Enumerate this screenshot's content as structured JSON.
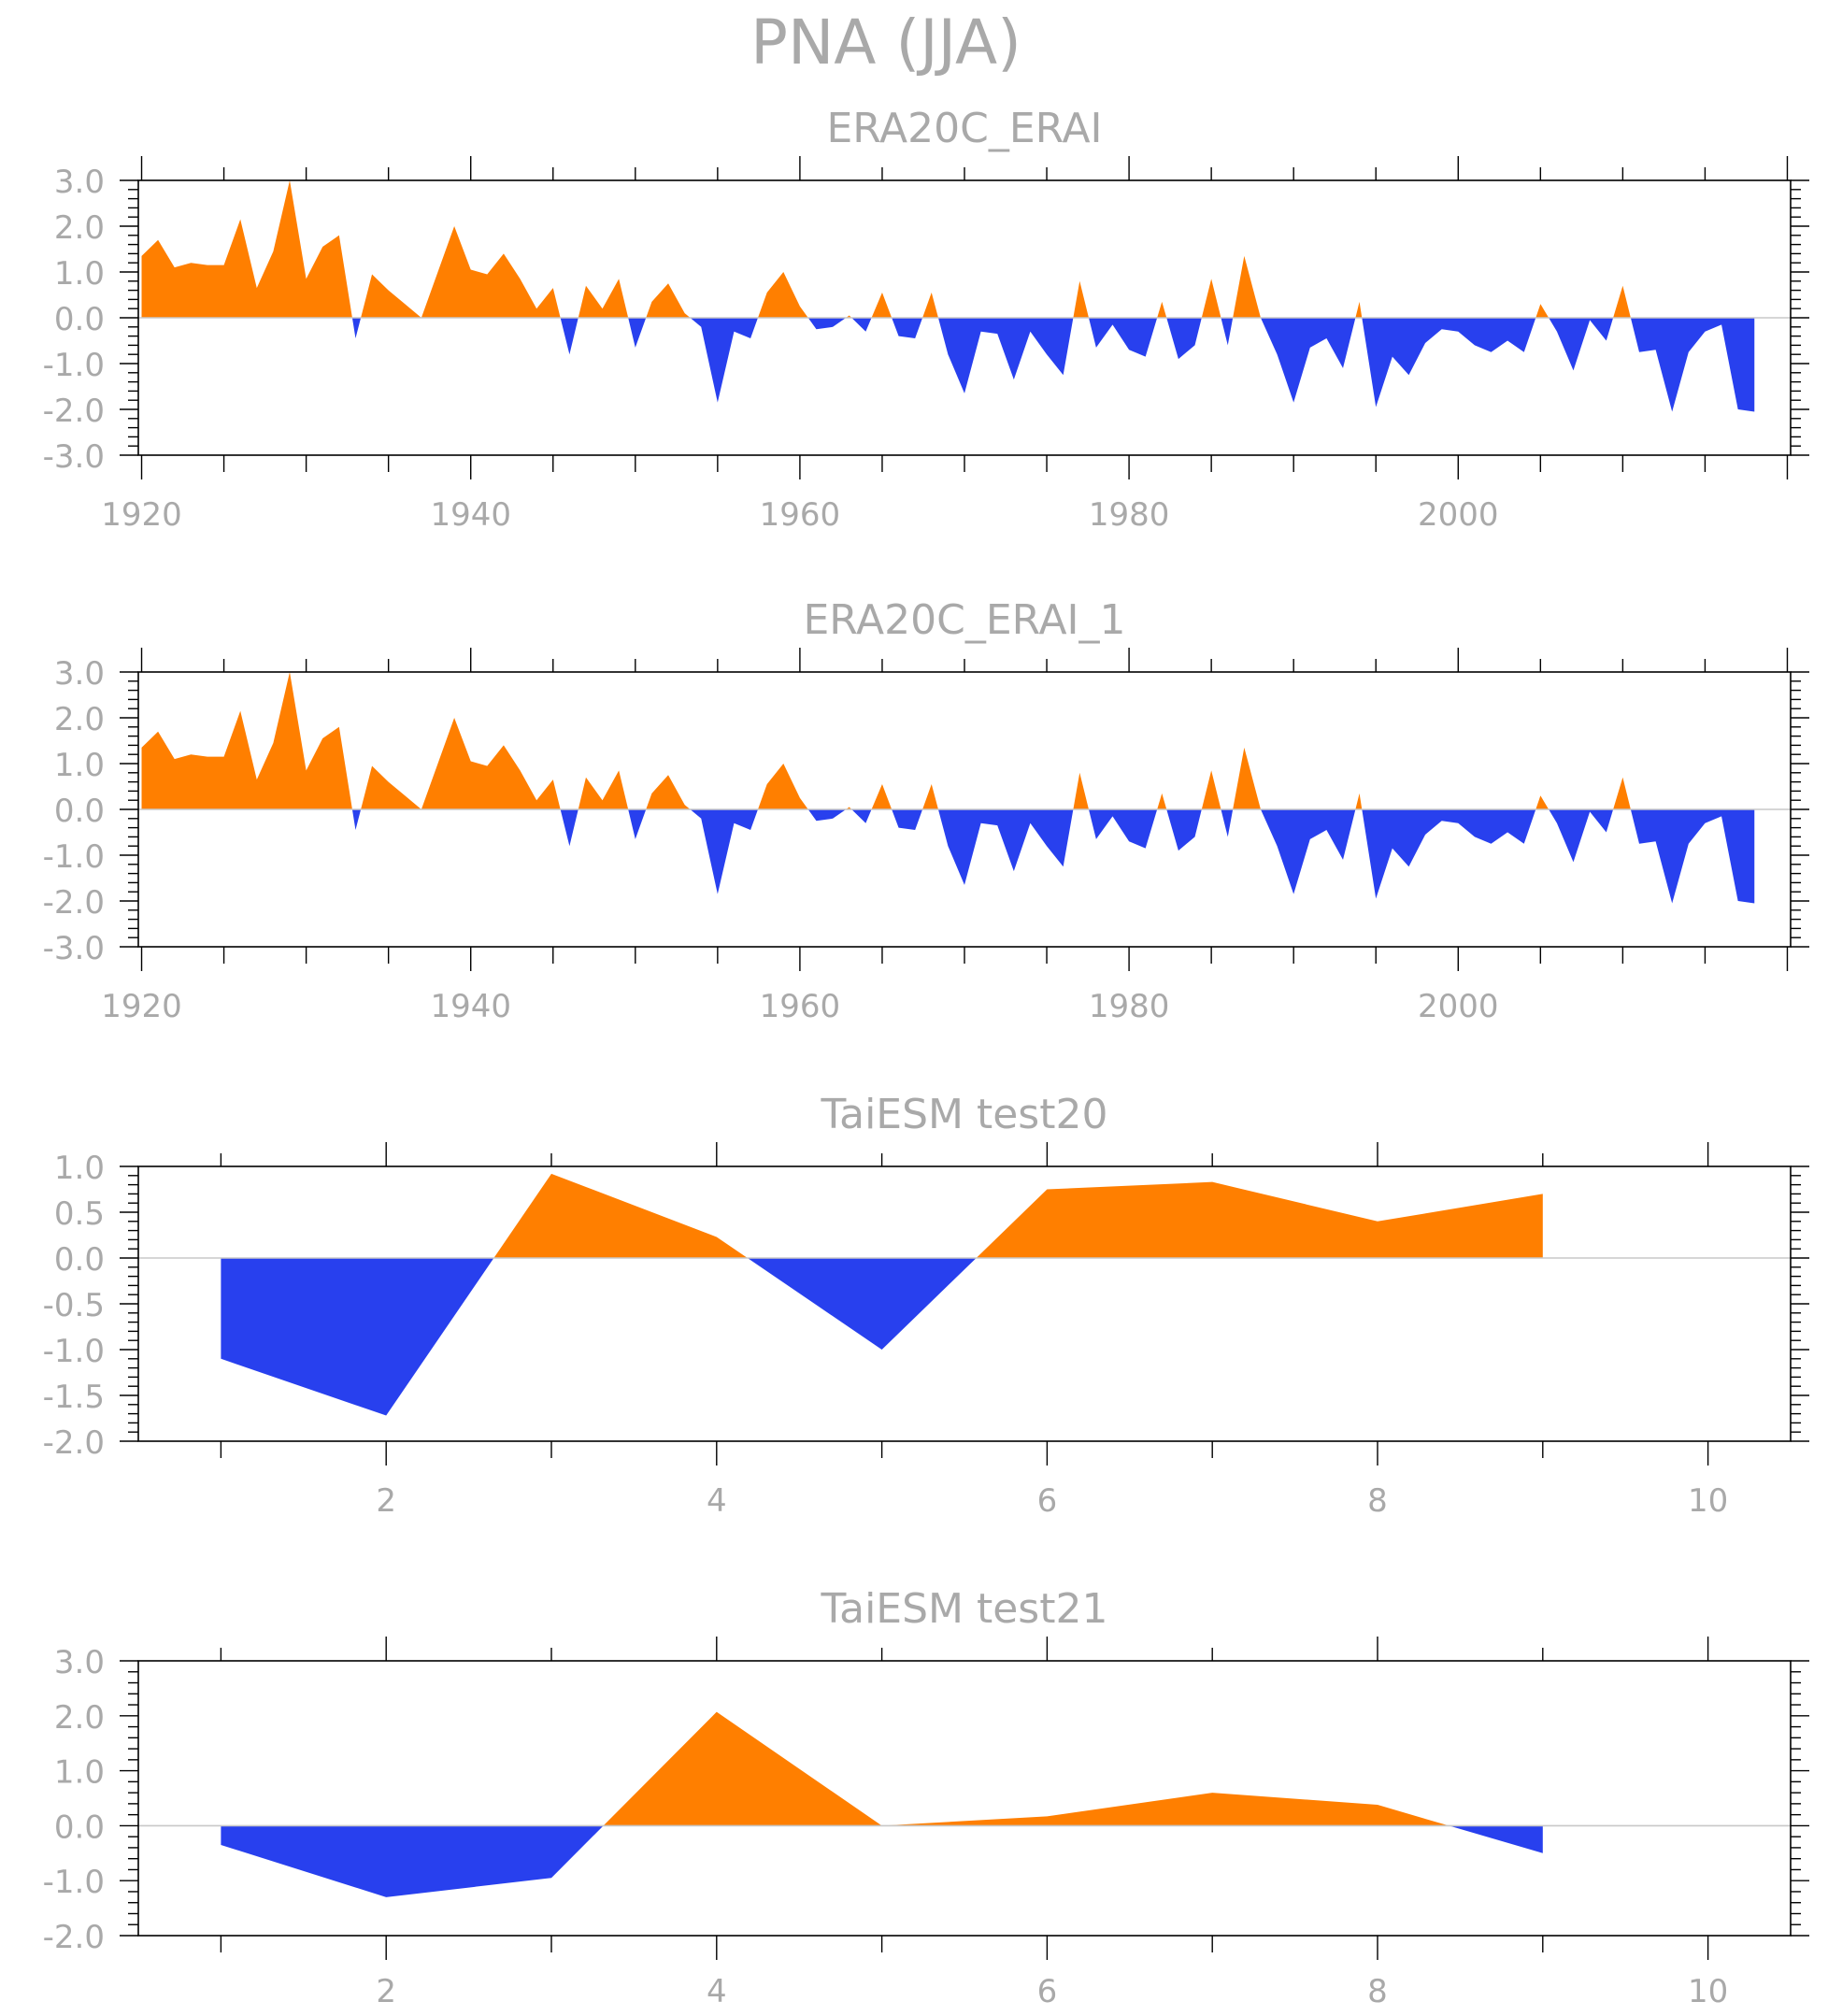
{
  "figure_title": "PNA (JJA)",
  "colors": {
    "positive": "#ff7f00",
    "negative": "#2840ee",
    "text": "#a9a9a9",
    "axis": "#000000",
    "zero_line": "#c8c8c8"
  },
  "chart_data": [
    {
      "type": "area",
      "title": "ERA20C_ERAI",
      "xlim": [
        1919.8,
        2020.2
      ],
      "ylim": [
        -3,
        3
      ],
      "xticks": [
        1920,
        1940,
        1960,
        1980,
        2000
      ],
      "xtick_labels": [
        "1920",
        "1940",
        "1960",
        "1980",
        "2000"
      ],
      "yticks": [
        -3,
        -2,
        -1,
        0,
        1,
        2,
        3
      ],
      "ytick_labels": [
        "-3.0",
        "-2.0",
        "-1.0",
        "0.0",
        "1.0",
        "2.0",
        "3.0"
      ],
      "grid": false,
      "x_start": 1920,
      "values": [
        1.35,
        1.7,
        1.1,
        1.2,
        1.15,
        1.15,
        2.15,
        0.65,
        1.45,
        3.0,
        0.85,
        1.55,
        1.8,
        -0.45,
        0.95,
        0.6,
        0.3,
        0.0,
        1.0,
        2.0,
        1.05,
        0.95,
        1.4,
        0.85,
        0.2,
        0.65,
        -0.8,
        0.7,
        0.2,
        0.85,
        -0.65,
        0.35,
        0.75,
        0.1,
        -0.2,
        -1.85,
        -0.3,
        -0.45,
        0.55,
        1.0,
        0.25,
        -0.25,
        -0.2,
        0.05,
        -0.3,
        0.55,
        -0.4,
        -0.45,
        0.55,
        -0.8,
        -1.65,
        -0.3,
        -0.35,
        -1.35,
        -0.3,
        -0.8,
        -1.25,
        0.8,
        -0.65,
        -0.15,
        -0.7,
        -0.85,
        0.35,
        -0.9,
        -0.6,
        0.85,
        -0.6,
        1.35,
        0.0,
        -0.8,
        -1.85,
        -0.65,
        -0.45,
        -1.1,
        0.35,
        -1.95,
        -0.85,
        -1.25,
        -0.55,
        -0.25,
        -0.3,
        -0.6,
        -0.75,
        -0.5,
        -0.75,
        0.3,
        -0.3,
        -1.15,
        -0.05,
        -0.5,
        0.7,
        -0.75,
        -0.7,
        -2.05,
        -0.75,
        -0.3,
        -0.15,
        -2.0,
        -2.05
      ]
    },
    {
      "type": "area",
      "title": "ERA20C_ERAI_1",
      "xlim": [
        1919.8,
        2020.2
      ],
      "ylim": [
        -3,
        3
      ],
      "xticks": [
        1920,
        1940,
        1960,
        1980,
        2000
      ],
      "xtick_labels": [
        "1920",
        "1940",
        "1960",
        "1980",
        "2000"
      ],
      "yticks": [
        -3,
        -2,
        -1,
        0,
        1,
        2,
        3
      ],
      "ytick_labels": [
        "-3.0",
        "-2.0",
        "-1.0",
        "0.0",
        "1.0",
        "2.0",
        "3.0"
      ],
      "grid": false,
      "x_start": 1920,
      "values": [
        1.35,
        1.7,
        1.1,
        1.2,
        1.15,
        1.15,
        2.15,
        0.65,
        1.45,
        3.0,
        0.85,
        1.55,
        1.8,
        -0.45,
        0.95,
        0.6,
        0.3,
        0.0,
        1.0,
        2.0,
        1.05,
        0.95,
        1.4,
        0.85,
        0.2,
        0.65,
        -0.8,
        0.7,
        0.2,
        0.85,
        -0.65,
        0.35,
        0.75,
        0.1,
        -0.2,
        -1.85,
        -0.3,
        -0.45,
        0.55,
        1.0,
        0.25,
        -0.25,
        -0.2,
        0.05,
        -0.3,
        0.55,
        -0.4,
        -0.45,
        0.55,
        -0.8,
        -1.65,
        -0.3,
        -0.35,
        -1.35,
        -0.3,
        -0.8,
        -1.25,
        0.8,
        -0.65,
        -0.15,
        -0.7,
        -0.85,
        0.35,
        -0.9,
        -0.6,
        0.85,
        -0.6,
        1.35,
        0.0,
        -0.8,
        -1.85,
        -0.65,
        -0.45,
        -1.1,
        0.35,
        -1.95,
        -0.85,
        -1.25,
        -0.55,
        -0.25,
        -0.3,
        -0.6,
        -0.75,
        -0.5,
        -0.75,
        0.3,
        -0.3,
        -1.15,
        -0.05,
        -0.5,
        0.7,
        -0.75,
        -0.7,
        -2.05,
        -0.75,
        -0.3,
        -0.15,
        -2.0,
        -2.05
      ]
    },
    {
      "type": "area",
      "title": "TaiESM test20",
      "xlim": [
        0.5,
        10.5
      ],
      "ylim": [
        -2,
        1
      ],
      "xticks": [
        2,
        4,
        6,
        8,
        10
      ],
      "xtick_labels": [
        "2",
        "4",
        "6",
        "8",
        "10"
      ],
      "yticks": [
        -2,
        -1.5,
        -1,
        -0.5,
        0,
        0.5,
        1
      ],
      "ytick_labels": [
        "-2.0",
        "-1.5",
        "-1.0",
        "-0.5",
        "0.0",
        "0.5",
        "1.0"
      ],
      "grid": false,
      "x": [
        1,
        2,
        3,
        4,
        5,
        6,
        7,
        8,
        9
      ],
      "values": [
        -1.1,
        -1.72,
        0.92,
        0.23,
        -1.0,
        0.75,
        0.83,
        0.4,
        0.7
      ]
    },
    {
      "type": "area",
      "title": "TaiESM test21",
      "xlim": [
        0.5,
        10.5
      ],
      "ylim": [
        -2,
        3
      ],
      "xticks": [
        2,
        4,
        6,
        8,
        10
      ],
      "xtick_labels": [
        "2",
        "4",
        "6",
        "8",
        "10"
      ],
      "yticks": [
        -2,
        -1,
        0,
        1,
        2,
        3
      ],
      "ytick_labels": [
        "-2.0",
        "-1.0",
        "0.0",
        "1.0",
        "2.0",
        "3.0"
      ],
      "grid": false,
      "x": [
        1,
        2,
        3,
        4,
        5,
        6,
        7,
        8,
        9
      ],
      "values": [
        -0.35,
        -1.3,
        -0.95,
        2.07,
        0.0,
        0.17,
        0.6,
        0.38,
        -0.5
      ]
    }
  ]
}
